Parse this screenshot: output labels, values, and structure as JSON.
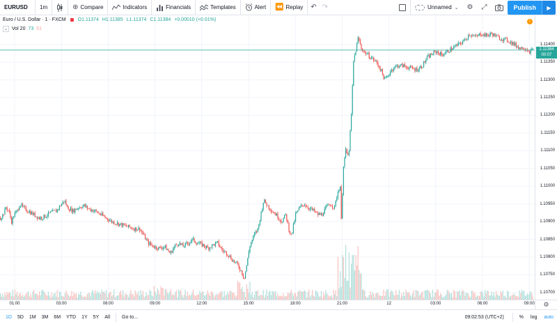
{
  "toolbar": {
    "symbol": "EURUSD",
    "interval": "1m",
    "compare_label": "Compare",
    "indicators_label": "Indicators",
    "financials_label": "Financials",
    "templates_label": "Templates",
    "alert_label": "Alert",
    "replay_label": "Replay",
    "layout_name": "Unnamed",
    "publish_label": "Publish"
  },
  "legend": {
    "title": "Euro / U.S. Dollar · 1 · FXCM",
    "open": "O1.11374",
    "high": "H1.11385",
    "low": "L1.11374",
    "close": "C1.11384",
    "change": "+0.00010 (+0.01%)"
  },
  "volume_legend": {
    "label": "Vol 20",
    "value1": "73",
    "value2": "51"
  },
  "price_axis": {
    "labels": [
      "1.11400",
      "1.11350",
      "1.11300",
      "1.11250",
      "1.11200",
      "1.11150",
      "1.11100",
      "1.11050",
      "1.11000",
      "1.10950",
      "1.10900",
      "1.10850",
      "1.10800",
      "1.10750",
      "1.10700"
    ],
    "last_price": "1.11384",
    "countdown": "00:07"
  },
  "time_axis": {
    "labels": [
      "01:00",
      "03:00",
      "06:00",
      "09:00",
      "12:00",
      "15:00",
      "18:00",
      "21:00",
      "12",
      "03:00",
      "06:00",
      "09:00"
    ]
  },
  "chart_data": {
    "type": "candlestick",
    "symbol": "EURUSD",
    "interval": "1m",
    "x_ticks": [
      "01:00",
      "03:00",
      "06:00",
      "09:00",
      "12:00",
      "15:00",
      "18:00",
      "21:00",
      "12",
      "03:00",
      "06:00",
      "09:00"
    ],
    "ylim": [
      1.1068,
      1.1148
    ],
    "last_price": 1.11384,
    "up_color": "#26a69a",
    "down_color": "#ef5350",
    "price_path": [
      [
        0,
        1.1091
      ],
      [
        4,
        1.1092
      ],
      [
        8,
        1.1094
      ],
      [
        12,
        1.1093
      ],
      [
        16,
        1.109
      ],
      [
        20,
        1.1092
      ],
      [
        24,
        1.1093
      ],
      [
        28,
        1.1095
      ],
      [
        32,
        1.1094
      ],
      [
        40,
        1.1093
      ],
      [
        48,
        1.1092
      ],
      [
        56,
        1.1091
      ],
      [
        64,
        1.10915
      ],
      [
        72,
        1.10925
      ],
      [
        80,
        1.1093
      ],
      [
        88,
        1.1095
      ],
      [
        92,
        1.1096
      ],
      [
        96,
        1.1094
      ],
      [
        104,
        1.1093
      ],
      [
        112,
        1.1094
      ],
      [
        120,
        1.10945
      ],
      [
        128,
        1.10935
      ],
      [
        136,
        1.1093
      ],
      [
        144,
        1.1092
      ],
      [
        152,
        1.1091
      ],
      [
        160,
        1.109
      ],
      [
        168,
        1.10895
      ],
      [
        176,
        1.1089
      ],
      [
        184,
        1.10885
      ],
      [
        192,
        1.1088
      ],
      [
        200,
        1.1088
      ],
      [
        206,
        1.1086
      ],
      [
        212,
        1.1084
      ],
      [
        220,
        1.1083
      ],
      [
        228,
        1.10825
      ],
      [
        236,
        1.1083
      ],
      [
        240,
        1.1082
      ],
      [
        244,
        1.1081
      ],
      [
        250,
        1.1083
      ],
      [
        256,
        1.1084
      ],
      [
        262,
        1.1083
      ],
      [
        270,
        1.1084
      ],
      [
        276,
        1.1085
      ],
      [
        282,
        1.1084
      ],
      [
        290,
        1.10835
      ],
      [
        298,
        1.10825
      ],
      [
        306,
        1.10835
      ],
      [
        312,
        1.1084
      ],
      [
        318,
        1.1082
      ],
      [
        326,
        1.1081
      ],
      [
        334,
        1.1079
      ],
      [
        340,
        1.1078
      ],
      [
        346,
        1.1076
      ],
      [
        350,
        1.1074
      ],
      [
        354,
        1.1078
      ],
      [
        358,
        1.1083
      ],
      [
        364,
        1.1086
      ],
      [
        370,
        1.1088
      ],
      [
        374,
        1.1092
      ],
      [
        378,
        1.1096
      ],
      [
        382,
        1.1095
      ],
      [
        386,
        1.1094
      ],
      [
        390,
        1.1093
      ],
      [
        396,
        1.1092
      ],
      [
        404,
        1.109
      ],
      [
        410,
        1.1092
      ],
      [
        414,
        1.1088
      ],
      [
        418,
        1.1086
      ],
      [
        424,
        1.1092
      ],
      [
        430,
        1.1094
      ],
      [
        436,
        1.1095
      ],
      [
        442,
        1.1094
      ],
      [
        450,
        1.1093
      ],
      [
        456,
        1.1092
      ],
      [
        462,
        1.1092
      ],
      [
        468,
        1.1094
      ],
      [
        474,
        1.1095
      ],
      [
        480,
        1.1094
      ],
      [
        484,
        1.1098
      ],
      [
        488,
        1.11
      ],
      [
        490,
        1.1088
      ],
      [
        492,
        1.1105
      ],
      [
        496,
        1.111
      ],
      [
        500,
        1.1108
      ],
      [
        504,
        1.112
      ],
      [
        507,
        1.1135
      ],
      [
        510,
        1.1138
      ],
      [
        514,
        1.1142
      ],
      [
        518,
        1.1139
      ],
      [
        522,
        1.1138
      ],
      [
        528,
        1.1137
      ],
      [
        534,
        1.1136
      ],
      [
        540,
        1.1135
      ],
      [
        546,
        1.1133
      ],
      [
        552,
        1.113
      ],
      [
        556,
        1.1131
      ],
      [
        562,
        1.1133
      ],
      [
        570,
        1.1134
      ],
      [
        578,
        1.1134
      ],
      [
        586,
        1.11335
      ],
      [
        594,
        1.1133
      ],
      [
        600,
        1.1133
      ],
      [
        606,
        1.1134
      ],
      [
        612,
        1.1136
      ],
      [
        618,
        1.1137
      ],
      [
        626,
        1.1138
      ],
      [
        634,
        1.1137
      ],
      [
        642,
        1.1138
      ],
      [
        650,
        1.1139
      ],
      [
        658,
        1.114
      ],
      [
        666,
        1.1141
      ],
      [
        674,
        1.1143
      ],
      [
        682,
        1.1142
      ],
      [
        690,
        1.1143
      ],
      [
        698,
        1.11425
      ],
      [
        706,
        1.1143
      ],
      [
        714,
        1.1142
      ],
      [
        722,
        1.11415
      ],
      [
        730,
        1.1141
      ],
      [
        738,
        1.114
      ],
      [
        746,
        1.1139
      ],
      [
        754,
        1.1139
      ],
      [
        760,
        1.1138
      ],
      [
        764,
        1.11384
      ]
    ]
  },
  "bottom_bar": {
    "ranges": [
      "1D",
      "5D",
      "1M",
      "3M",
      "6M",
      "YTD",
      "1Y",
      "5Y",
      "All"
    ],
    "active_range": "1D",
    "goto_label": "Go to...",
    "clock": "09:02:53 (UTC+2)",
    "percent_label": "%",
    "log_label": "log",
    "auto_label": "auto"
  }
}
